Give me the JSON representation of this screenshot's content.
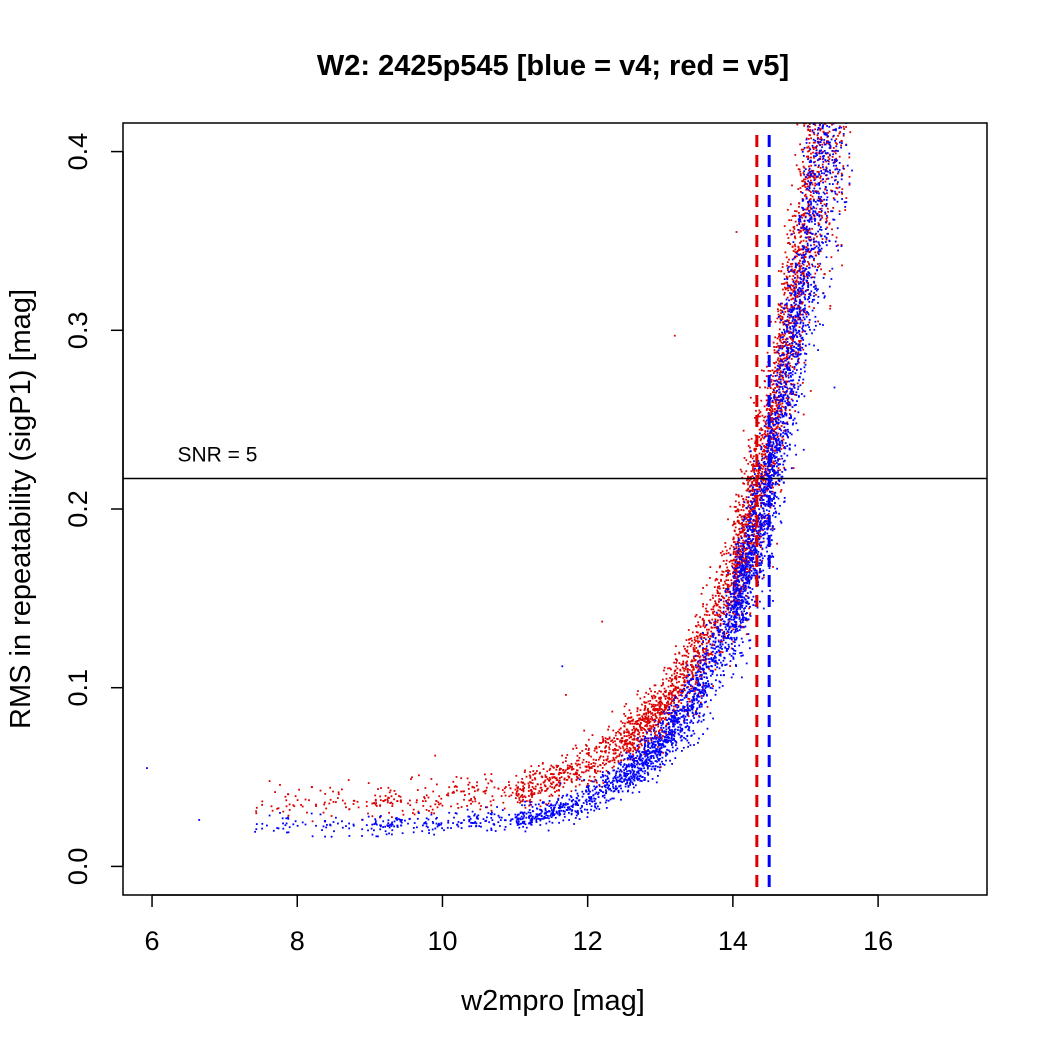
{
  "chart_data": {
    "type": "scatter",
    "title": "W2: 2425p545 [blue = v4; red = v5]",
    "xlabel": "w2mpro [mag]",
    "ylabel": "RMS in repeatability (sigP1) [mag]",
    "xlim": [
      5.6,
      17.5
    ],
    "ylim": [
      -0.016,
      0.416
    ],
    "x_ticks": [
      6,
      8,
      10,
      12,
      14,
      16
    ],
    "y_ticks": [
      0.0,
      0.1,
      0.2,
      0.3,
      0.4
    ],
    "x_tick_labels": [
      "6",
      "8",
      "10",
      "12",
      "14",
      "16"
    ],
    "y_tick_labels": [
      "0.0",
      "0.1",
      "0.2",
      "0.3",
      "0.4"
    ],
    "grid": false,
    "series": [
      {
        "version": "v4",
        "color": "#0000ff",
        "trend": [
          [
            7.4,
            0.023
          ],
          [
            8.0,
            0.023
          ],
          [
            9.0,
            0.023
          ],
          [
            10.0,
            0.024
          ],
          [
            11.0,
            0.027
          ],
          [
            11.5,
            0.03
          ],
          [
            12.0,
            0.037
          ],
          [
            12.5,
            0.05
          ],
          [
            13.0,
            0.068
          ],
          [
            13.5,
            0.095
          ],
          [
            14.0,
            0.14
          ],
          [
            14.3,
            0.18
          ],
          [
            14.5,
            0.215
          ],
          [
            14.7,
            0.26
          ],
          [
            14.9,
            0.31
          ],
          [
            15.1,
            0.36
          ],
          [
            15.3,
            0.415
          ]
        ],
        "extra_points": [
          [
            5.93,
            0.055
          ],
          [
            6.65,
            0.026
          ],
          [
            11.65,
            0.112
          ],
          [
            15.4,
            0.268
          ]
        ]
      },
      {
        "version": "v5",
        "color": "#dd0000",
        "trend": [
          [
            7.5,
            0.03
          ],
          [
            8.0,
            0.031
          ],
          [
            9.0,
            0.033
          ],
          [
            10.0,
            0.035
          ],
          [
            11.0,
            0.04
          ],
          [
            11.5,
            0.045
          ],
          [
            12.0,
            0.053
          ],
          [
            12.5,
            0.066
          ],
          [
            13.0,
            0.085
          ],
          [
            13.5,
            0.112
          ],
          [
            14.0,
            0.158
          ],
          [
            14.3,
            0.2
          ],
          [
            14.5,
            0.235
          ],
          [
            14.7,
            0.28
          ],
          [
            14.9,
            0.33
          ],
          [
            15.1,
            0.38
          ],
          [
            15.3,
            0.425
          ]
        ],
        "extra_points": [
          [
            13.2,
            0.297
          ],
          [
            11.7,
            0.096
          ],
          [
            9.9,
            0.062
          ],
          [
            12.2,
            0.137
          ],
          [
            14.05,
            0.355
          ],
          [
            11.1,
            0.04
          ]
        ]
      }
    ],
    "reference_lines": [
      {
        "orientation": "horizontal",
        "y": 0.2171,
        "color": "#000000",
        "style": "solid",
        "label": "SNR = 5",
        "label_x": 6.35
      },
      {
        "orientation": "vertical",
        "x": 14.33,
        "color": "#dd0000",
        "style": "dashed"
      },
      {
        "orientation": "vertical",
        "x": 14.5,
        "color": "#0000ff",
        "style": "dashed"
      }
    ]
  }
}
